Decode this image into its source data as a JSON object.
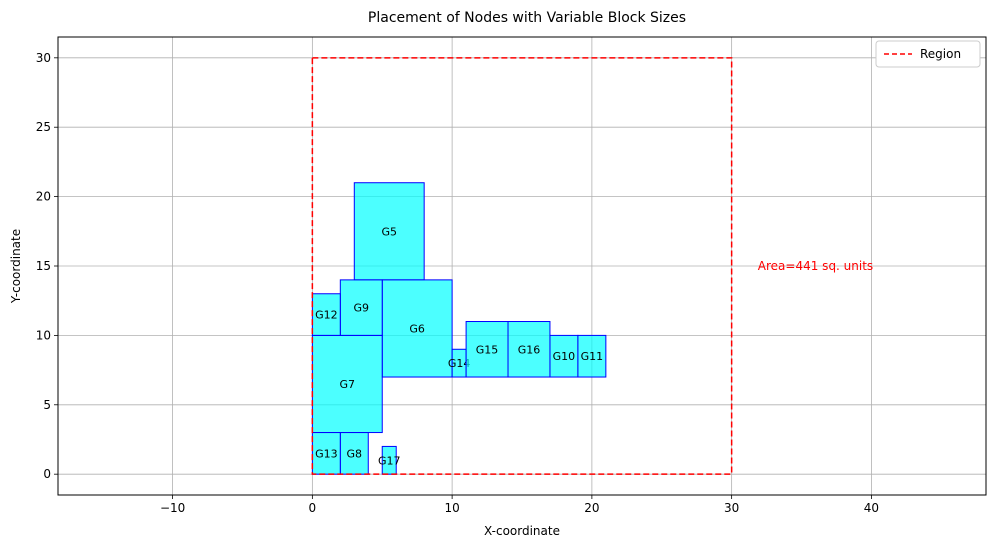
{
  "chart_data": {
    "type": "rectangles",
    "title": "Placement of Nodes with Variable Block Sizes",
    "xlabel": "X-coordinate",
    "ylabel": "Y-coordinate",
    "xlim": [
      -18.2,
      48.2
    ],
    "ylim": [
      -1.5,
      31.5
    ],
    "xticks": [
      -10,
      0,
      10,
      20,
      30,
      40
    ],
    "yticks": [
      0,
      5,
      10,
      15,
      20,
      25,
      30
    ],
    "grid": true,
    "block_fill": "#00ffff",
    "block_edge": "#0000ff",
    "blocks": [
      {
        "label": "G5",
        "x": 3,
        "y": 14,
        "w": 5,
        "h": 7
      },
      {
        "label": "G6",
        "x": 5,
        "y": 7,
        "w": 5,
        "h": 7
      },
      {
        "label": "G7",
        "x": 0,
        "y": 3,
        "w": 5,
        "h": 7
      },
      {
        "label": "G8",
        "x": 2,
        "y": 0,
        "w": 2,
        "h": 3
      },
      {
        "label": "G9",
        "x": 2,
        "y": 10,
        "w": 3,
        "h": 4
      },
      {
        "label": "G10",
        "x": 17,
        "y": 7,
        "w": 2,
        "h": 3
      },
      {
        "label": "G11",
        "x": 19,
        "y": 7,
        "w": 2,
        "h": 3
      },
      {
        "label": "G12",
        "x": 0,
        "y": 10,
        "w": 2,
        "h": 3
      },
      {
        "label": "G13",
        "x": 0,
        "y": 0,
        "w": 2,
        "h": 3
      },
      {
        "label": "G14",
        "x": 10,
        "y": 7,
        "w": 1,
        "h": 2
      },
      {
        "label": "G15",
        "x": 11,
        "y": 7,
        "w": 3,
        "h": 4
      },
      {
        "label": "G16",
        "x": 14,
        "y": 7,
        "w": 3,
        "h": 4
      },
      {
        "label": "G17",
        "x": 5,
        "y": 0,
        "w": 1,
        "h": 2
      }
    ],
    "region": {
      "x": 0,
      "y": 0,
      "w": 30,
      "h": 30,
      "color": "#ff0000",
      "label": "Region"
    },
    "annotation": {
      "text": "Area=441 sq. units",
      "x": 33,
      "y": 15,
      "color": "#ff0000"
    },
    "legend": {
      "position": "top-right",
      "entries": [
        "Region"
      ]
    }
  }
}
